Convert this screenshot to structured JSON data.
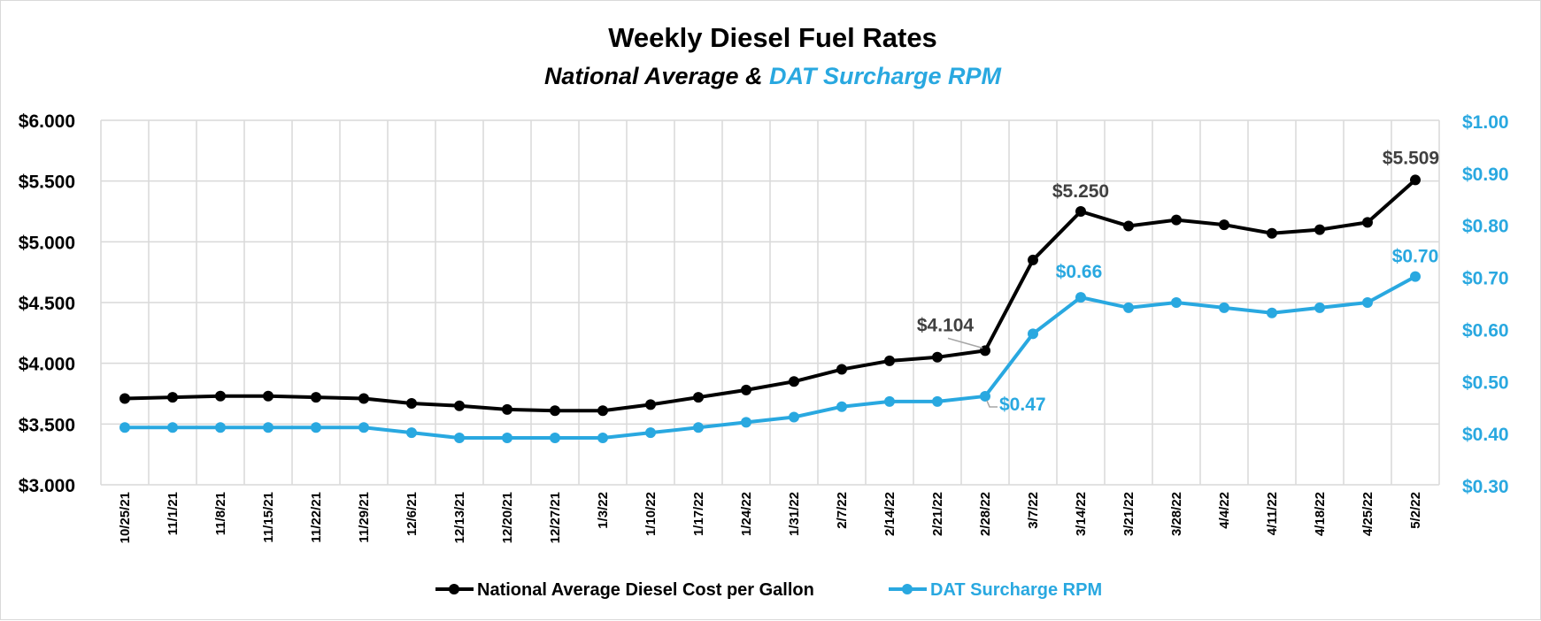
{
  "colors": {
    "diesel": "#000000",
    "surcharge": "#29a8e0",
    "grid": "#d9d9d9",
    "axis_left": "#000000",
    "axis_right": "#29a8e0",
    "label_gray": "#404040"
  },
  "chart_data": {
    "type": "line",
    "title": "Weekly Diesel Fuel Rates",
    "subtitle_parts": [
      {
        "text": "National  Average & ",
        "color": "#000000"
      },
      {
        "text": "DAT Surcharge RPM",
        "color": "#29a8e0"
      }
    ],
    "categories": [
      "10/25/21",
      "11/1/21",
      "11/8/21",
      "11/15/21",
      "11/22/21",
      "11/29/21",
      "12/6/21",
      "12/13/21",
      "12/20/21",
      "12/27/21",
      "1/3/22",
      "1/10/22",
      "1/17/22",
      "1/24/22",
      "1/31/22",
      "2/7/22",
      "2/14/22",
      "2/21/22",
      "2/28/22",
      "3/7/22",
      "3/14/22",
      "3/21/22",
      "3/28/22",
      "4/4/22",
      "4/11/22",
      "4/18/22",
      "4/25/22",
      "5/2/22"
    ],
    "y_left": {
      "min": 3.0,
      "max": 6.0,
      "step": 0.5,
      "ticks": [
        "$3.000",
        "$3.500",
        "$4.000",
        "$4.500",
        "$5.000",
        "$5.500",
        "$6.000"
      ]
    },
    "y_right": {
      "min": 0.3,
      "max": 1.0,
      "step": 0.1,
      "ticks": [
        "$0.30",
        "$0.40",
        "$0.50",
        "$0.60",
        "$0.70",
        "$0.80",
        "$0.90",
        "$1.00"
      ]
    },
    "grid": true,
    "legend_position": "bottom",
    "series": [
      {
        "name": "National Average Diesel Cost per Gallon",
        "axis": "left",
        "values": [
          3.71,
          3.72,
          3.73,
          3.73,
          3.72,
          3.71,
          3.67,
          3.65,
          3.62,
          3.61,
          3.61,
          3.66,
          3.72,
          3.78,
          3.85,
          3.95,
          4.02,
          4.05,
          4.104,
          4.85,
          5.25,
          5.13,
          5.18,
          5.14,
          5.07,
          5.1,
          5.16,
          5.509
        ]
      },
      {
        "name": "DAT Surcharge RPM",
        "axis": "right",
        "values": [
          0.41,
          0.41,
          0.41,
          0.41,
          0.41,
          0.41,
          0.4,
          0.39,
          0.39,
          0.39,
          0.39,
          0.4,
          0.41,
          0.42,
          0.43,
          0.45,
          0.46,
          0.46,
          0.47,
          0.59,
          0.66,
          0.64,
          0.65,
          0.64,
          0.63,
          0.64,
          0.65,
          0.7
        ]
      }
    ],
    "annotations": [
      {
        "series": 0,
        "index": 18,
        "text": "$4.104"
      },
      {
        "series": 0,
        "index": 20,
        "text": "$5.250"
      },
      {
        "series": 0,
        "index": 27,
        "text": "$5.509"
      },
      {
        "series": 1,
        "index": 18,
        "text": "$0.47"
      },
      {
        "series": 1,
        "index": 20,
        "text": "$0.66"
      },
      {
        "series": 1,
        "index": 27,
        "text": "$0.70"
      }
    ]
  }
}
